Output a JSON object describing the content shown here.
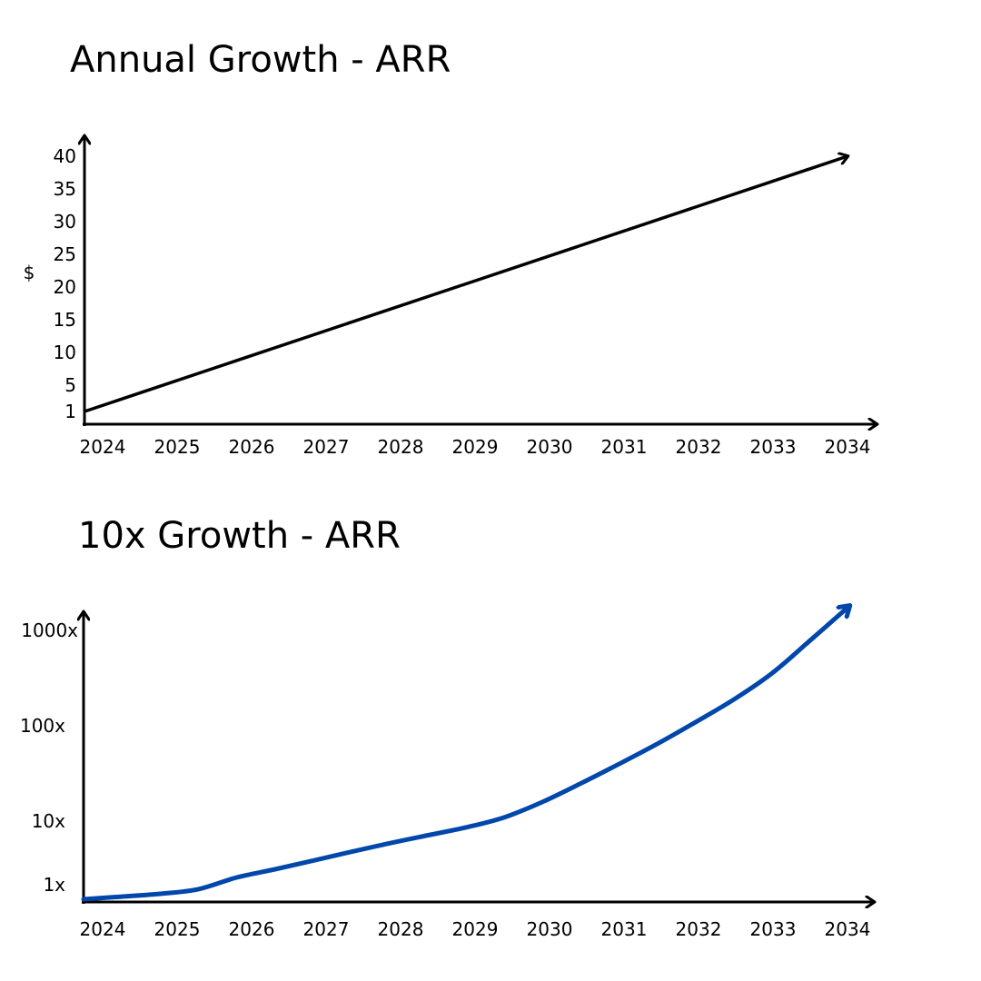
{
  "chart_data": [
    {
      "type": "line",
      "title": "Annual Growth - ARR",
      "ylabel": "$",
      "xlabel": "",
      "categories": [
        "2024",
        "2025",
        "2026",
        "2027",
        "2028",
        "2029",
        "2030",
        "2031",
        "2032",
        "2033",
        "2034"
      ],
      "y_ticks": [
        1,
        5,
        10,
        15,
        20,
        25,
        30,
        35,
        40
      ],
      "ylim": [
        0,
        42
      ],
      "series": [
        {
          "x": [
            "2024",
            "2034"
          ],
          "values": [
            1,
            40
          ],
          "color": "#000000"
        }
      ],
      "grid": false
    },
    {
      "type": "line",
      "title": "10x Growth - ARR",
      "ylabel": "",
      "xlabel": "",
      "categories": [
        "2024",
        "2025",
        "2026",
        "2027",
        "2028",
        "2029",
        "2030",
        "2031",
        "2032",
        "2033",
        "2034"
      ],
      "y_ticks": [
        "1x",
        "10x",
        "100x",
        "1000x"
      ],
      "yscale": "log",
      "series": [
        {
          "x": [
            2024,
            2024.5,
            2025,
            2025.5,
            2026,
            2026.5,
            2027,
            2027.5,
            2028,
            2028.5,
            2029,
            2029.5,
            2030,
            2030.5,
            2031,
            2031.5,
            2032,
            2032.5,
            2033,
            2033.5,
            2034
          ],
          "values": [
            0.55,
            0.65,
            0.72,
            0.85,
            1.3,
            1.75,
            2.4,
            3.3,
            4.5,
            6.0,
            8.0,
            11,
            16,
            25,
            40,
            65,
            110,
            190,
            360,
            800,
            1800
          ],
          "color": "#0047ab"
        }
      ],
      "grid": false
    }
  ]
}
